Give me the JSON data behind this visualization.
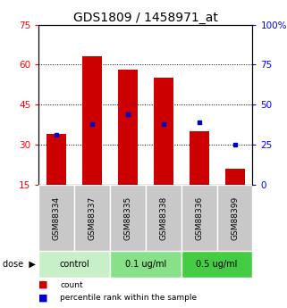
{
  "title": "GDS1809 / 1458971_at",
  "samples": [
    "GSM88334",
    "GSM88337",
    "GSM88335",
    "GSM88338",
    "GSM88336",
    "GSM88399"
  ],
  "count_values": [
    34,
    63,
    58,
    55,
    35,
    21
  ],
  "percentile_values": [
    31,
    38,
    44,
    38,
    39,
    25
  ],
  "ylim_left": [
    15,
    75
  ],
  "ylim_right": [
    0,
    100
  ],
  "yticks_left": [
    15,
    30,
    45,
    60,
    75
  ],
  "yticks_right": [
    0,
    25,
    50,
    75,
    100
  ],
  "bar_color": "#cc0000",
  "marker_color": "#0000cc",
  "bar_bottom": 15,
  "groups": [
    {
      "label": "control",
      "start": 0,
      "end": 2,
      "color": "#c8f0c8"
    },
    {
      "label": "0.1 ug/ml",
      "start": 2,
      "end": 4,
      "color": "#88e088"
    },
    {
      "label": "0.5 ug/ml",
      "start": 4,
      "end": 6,
      "color": "#44cc44"
    }
  ],
  "sample_bg_color": "#c8c8c8",
  "legend_count_label": "count",
  "legend_percentile_label": "percentile rank within the sample",
  "title_fontsize": 10,
  "tick_fontsize": 7.5,
  "label_fontsize": 6.5,
  "group_fontsize": 7,
  "bar_width": 0.55
}
